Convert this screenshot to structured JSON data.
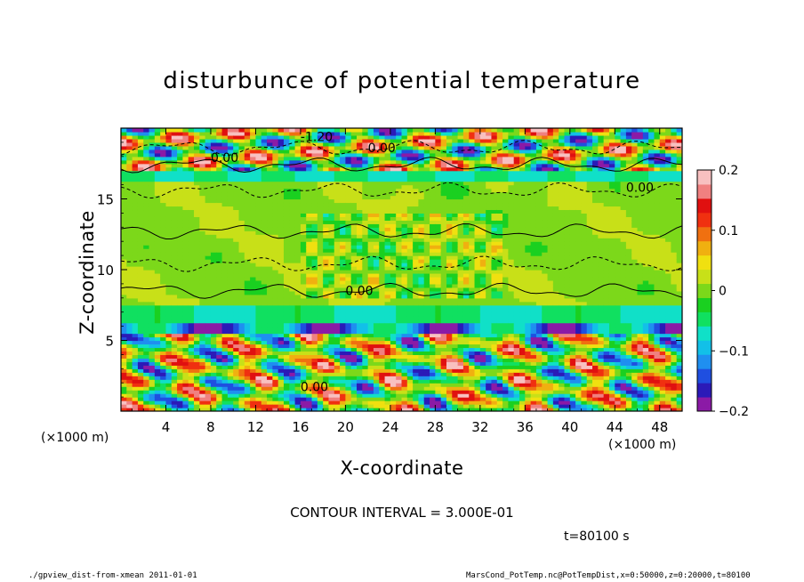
{
  "chart_data": {
    "type": "heatmap",
    "title": "disturbunce of potential temperature",
    "xlabel": "X-coordinate",
    "ylabel": "Z-coordinate",
    "x_unit_label": "(×1000 m)",
    "y_unit_label": "(×1000 m)",
    "xlim": [
      0,
      50
    ],
    "ylim": [
      0,
      20
    ],
    "x_ticks": [
      4,
      8,
      12,
      16,
      20,
      24,
      28,
      32,
      36,
      40,
      44,
      48
    ],
    "y_ticks": [
      5,
      10,
      15
    ],
    "colorbar": {
      "min": -0.2,
      "max": 0.2,
      "tick_values": [
        0.2,
        0.1,
        0,
        -0.1,
        -0.2
      ],
      "tick_labels": [
        "0.2",
        "0.1",
        "0",
        "−0.1",
        "−0.2"
      ],
      "colors": [
        "#8b1aa6",
        "#2b1ab8",
        "#1f4fe0",
        "#1f8ff0",
        "#12c0e8",
        "#10e0c8",
        "#10e060",
        "#1ad020",
        "#7cd81a",
        "#c8e018",
        "#f0e010",
        "#f0b010",
        "#f07010",
        "#f03010",
        "#e01010",
        "#f08080",
        "#f8c0c0"
      ]
    },
    "contour_labels": [
      "0.00",
      "-1.20"
    ],
    "contour_interval_text": "CONTOUR INTERVAL = 3.000E-01",
    "time_label": "t=80100 s"
  },
  "footer": {
    "left": "./gpview_dist-from-xmean   2011-01-01",
    "right": "MarsCond_PotTemp.nc@PotTempDist,x=0:50000,z=0:20000,t=80100"
  }
}
